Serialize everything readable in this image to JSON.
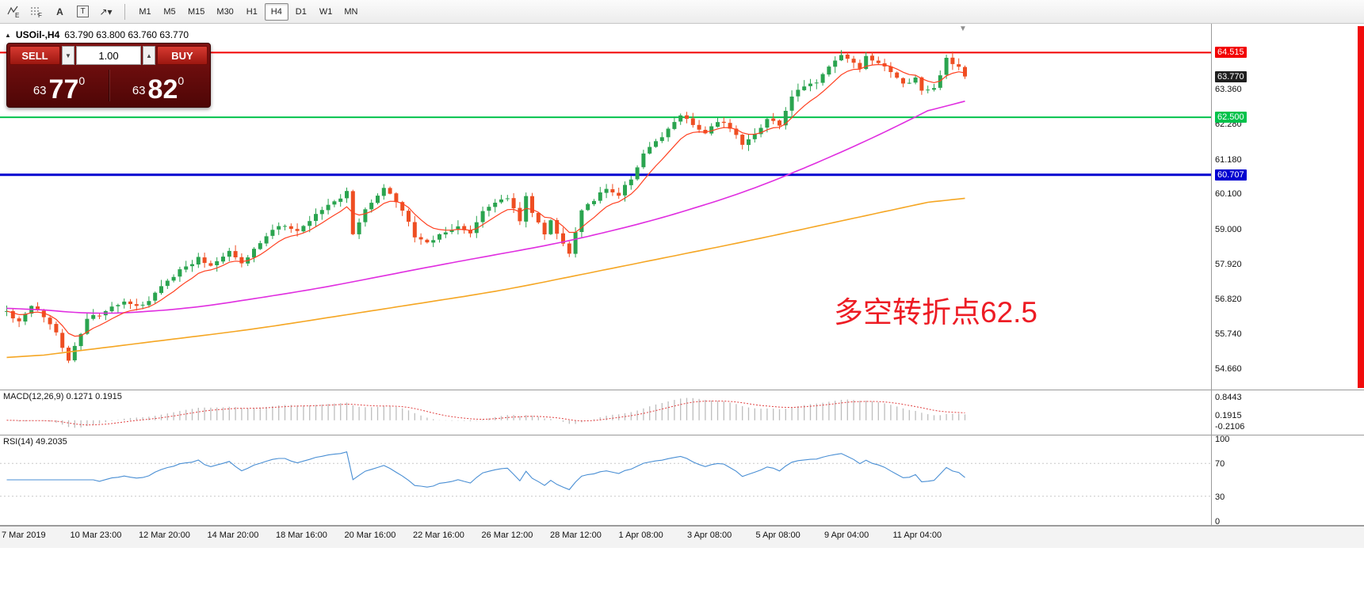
{
  "toolbar": {
    "icons": [
      {
        "name": "indicators-e-icon",
        "glyph": "E"
      },
      {
        "name": "objects-f-icon",
        "glyph": "F"
      },
      {
        "name": "text-label-icon",
        "glyph": "A"
      },
      {
        "name": "text-box-icon",
        "glyph": "T"
      },
      {
        "name": "arrow-tool-icon",
        "glyph": "↗▾"
      }
    ],
    "timeframes": [
      "M1",
      "M5",
      "M15",
      "M30",
      "H1",
      "H4",
      "D1",
      "W1",
      "MN"
    ],
    "active_timeframe": "H4"
  },
  "quote_header": {
    "collapse_icon": "▲",
    "symbol": "USOil-,H4",
    "ohlc": "63.790 63.800 63.760 63.770"
  },
  "trade_panel": {
    "sell_label": "SELL",
    "buy_label": "BUY",
    "volume": "1.00",
    "sell_price": {
      "small": "63",
      "big": "77",
      "sup": "0"
    },
    "buy_price": {
      "small": "63",
      "big": "82",
      "sup": "0"
    }
  },
  "annotation": {
    "text": "多空转折点62.5",
    "color": "#ed1c24"
  },
  "price_axis": {
    "plain": [
      {
        "label": "63.360",
        "value": 63.36
      },
      {
        "label": "62.280",
        "value": 62.28
      },
      {
        "label": "61.180",
        "value": 61.18
      },
      {
        "label": "60.100",
        "value": 60.1
      },
      {
        "label": "59.000",
        "value": 59.0
      },
      {
        "label": "57.920",
        "value": 57.92
      },
      {
        "label": "56.820",
        "value": 56.82
      },
      {
        "label": "55.740",
        "value": 55.74
      },
      {
        "label": "54.660",
        "value": 54.66
      }
    ],
    "badges": [
      {
        "label": "64.515",
        "value": 64.515,
        "bg": "#f20000"
      },
      {
        "label": "63.770",
        "value": 63.77,
        "bg": "#1f1f1f"
      },
      {
        "label": "62.500",
        "value": 62.5,
        "bg": "#00c24b"
      },
      {
        "label": "60.707",
        "value": 60.707,
        "bg": "#0000d0"
      }
    ]
  },
  "macd_panel": {
    "title": "MACD(12,26,9) 0.1271 0.1915",
    "axis_labels": [
      {
        "label": "0.8443",
        "value": 0.8443
      },
      {
        "label": "0.1915",
        "value": 0.1915
      },
      {
        "label": "-0.2106",
        "value": -0.2106
      }
    ]
  },
  "rsi_panel": {
    "title": "RSI(14) 49.2035",
    "axis_labels": [
      {
        "label": "100",
        "value": 100
      },
      {
        "label": "70",
        "value": 70
      },
      {
        "label": "30",
        "value": 30
      },
      {
        "label": "0",
        "value": 0
      }
    ],
    "levels": [
      70,
      30
    ]
  },
  "colors": {
    "up": "#2aa44f",
    "down": "#ee4e22",
    "ma_fast": "#ff4020",
    "ma_mid": "#e02ee0",
    "ma_slow": "#f5a623",
    "rsi_line": "#4a8fd4",
    "macd_hist": "#bdbdbd",
    "macd_signal": "#e04040",
    "badge_current_bg": "#1f1f1f"
  },
  "chart_data": {
    "type": "candlestick",
    "symbol": "USOil-",
    "timeframe": "H4",
    "ohlc_display": "O 63.790  H 63.800  L 63.760  C 63.770",
    "last_price": 63.77,
    "y_range_visible": [
      54.31,
      65.36
    ],
    "x_labels": [
      "7 Mar 2019",
      "10 Mar 23:00",
      "12 Mar 20:00",
      "14 Mar 20:00",
      "18 Mar 16:00",
      "20 Mar 16:00",
      "22 Mar 16:00",
      "26 Mar 12:00",
      "28 Mar 12:00",
      "1 Apr 08:00",
      "3 Apr 08:00",
      "5 Apr 08:00",
      "9 Apr 04:00",
      "11 Apr 04:00"
    ],
    "y_ticks": [
      63.36,
      62.28,
      61.18,
      60.1,
      59.0,
      57.92,
      56.82,
      55.74,
      54.66
    ],
    "horizontal_lines": [
      {
        "price": 64.515,
        "color": "#f20000",
        "width": 2
      },
      {
        "price": 62.5,
        "color": "#00c24b",
        "width": 2
      },
      {
        "price": 60.707,
        "color": "#0000d0",
        "width": 3
      }
    ],
    "candle_count": 156,
    "close_path": [
      [
        0,
        56.45
      ],
      [
        2,
        56.1
      ],
      [
        4,
        56.6
      ],
      [
        6,
        56.3
      ],
      [
        8,
        55.8
      ],
      [
        10,
        54.95
      ],
      [
        11,
        55.35
      ],
      [
        13,
        56.2
      ],
      [
        16,
        56.45
      ],
      [
        19,
        56.75
      ],
      [
        22,
        56.6
      ],
      [
        25,
        57.2
      ],
      [
        28,
        57.75
      ],
      [
        31,
        58.1
      ],
      [
        33,
        57.9
      ],
      [
        36,
        58.35
      ],
      [
        38,
        57.95
      ],
      [
        41,
        58.6
      ],
      [
        44,
        59.15
      ],
      [
        47,
        58.9
      ],
      [
        50,
        59.45
      ],
      [
        53,
        59.9
      ],
      [
        55,
        60.15
      ],
      [
        56,
        58.9
      ],
      [
        58,
        59.6
      ],
      [
        61,
        60.3
      ],
      [
        63,
        59.9
      ],
      [
        65,
        59.3
      ],
      [
        66,
        58.75
      ],
      [
        68,
        58.6
      ],
      [
        70,
        58.85
      ],
      [
        73,
        59.1
      ],
      [
        75,
        58.85
      ],
      [
        77,
        59.6
      ],
      [
        79,
        59.85
      ],
      [
        81,
        60.0
      ],
      [
        83,
        59.3
      ],
      [
        84,
        60.05
      ],
      [
        85,
        59.5
      ],
      [
        87,
        58.9
      ],
      [
        88,
        59.25
      ],
      [
        90,
        58.55
      ],
      [
        91,
        58.3
      ],
      [
        93,
        59.6
      ],
      [
        95,
        59.95
      ],
      [
        97,
        60.25
      ],
      [
        99,
        60.1
      ],
      [
        101,
        60.6
      ],
      [
        103,
        61.35
      ],
      [
        105,
        61.7
      ],
      [
        107,
        62.1
      ],
      [
        109,
        62.6
      ],
      [
        111,
        62.3
      ],
      [
        113,
        62.0
      ],
      [
        115,
        62.35
      ],
      [
        117,
        62.2
      ],
      [
        119,
        61.7
      ],
      [
        121,
        62.0
      ],
      [
        123,
        62.45
      ],
      [
        125,
        62.3
      ],
      [
        127,
        63.1
      ],
      [
        129,
        63.5
      ],
      [
        131,
        63.6
      ],
      [
        133,
        64.05
      ],
      [
        135,
        64.45
      ],
      [
        136,
        64.3
      ],
      [
        138,
        64.0
      ],
      [
        139,
        64.35
      ],
      [
        141,
        64.15
      ],
      [
        143,
        63.9
      ],
      [
        145,
        63.5
      ],
      [
        147,
        63.75
      ],
      [
        148,
        63.3
      ],
      [
        150,
        63.4
      ],
      [
        152,
        64.3
      ],
      [
        154,
        64.05
      ],
      [
        155,
        63.77
      ]
    ],
    "moving_averages": [
      {
        "name": "fast",
        "type": "ema",
        "period": 8,
        "color": "#ff4020"
      },
      {
        "name": "mid",
        "type": "path",
        "color": "#e02ee0",
        "path": [
          [
            0,
            56.6
          ],
          [
            15,
            56.35
          ],
          [
            30,
            56.55
          ],
          [
            50,
            57.15
          ],
          [
            70,
            57.9
          ],
          [
            90,
            58.6
          ],
          [
            105,
            59.3
          ],
          [
            120,
            60.2
          ],
          [
            135,
            61.4
          ],
          [
            146,
            62.4
          ],
          [
            155,
            63.3
          ]
        ]
      },
      {
        "name": "slow",
        "type": "path",
        "color": "#f5a623",
        "path": [
          [
            0,
            54.95
          ],
          [
            40,
            55.9
          ],
          [
            80,
            57.1
          ],
          [
            120,
            58.65
          ],
          [
            155,
            60.1
          ]
        ]
      }
    ],
    "subpanels": [
      {
        "type": "macd",
        "params": [
          12,
          26,
          9
        ],
        "current": [
          0.1271,
          0.1915
        ],
        "scale": [
          -0.4,
          0.95
        ]
      },
      {
        "type": "rsi",
        "params": [
          14
        ],
        "current": 49.2035,
        "levels": [
          70,
          30
        ],
        "scale": [
          0,
          100
        ]
      }
    ],
    "annotation": {
      "text": "多空转折点62.5",
      "color": "#ed1c24",
      "near_price_level": 62.5
    }
  }
}
